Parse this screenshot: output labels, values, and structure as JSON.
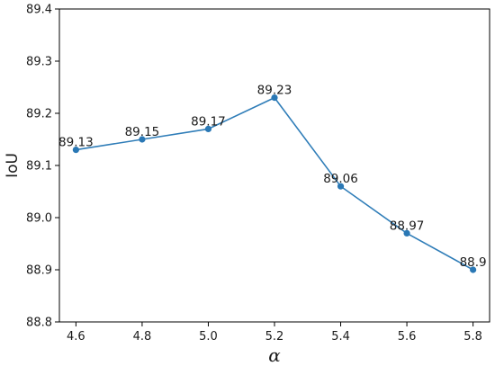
{
  "chart_data": {
    "type": "line",
    "title": "",
    "xlabel": "α",
    "ylabel": "IoU",
    "x": [
      4.6,
      4.8,
      5.0,
      5.2,
      5.4,
      5.6,
      5.8
    ],
    "series": [
      {
        "values": [
          89.13,
          89.15,
          89.17,
          89.23,
          89.06,
          88.97,
          88.9
        ],
        "color": "#2f7db8"
      }
    ],
    "data_labels": [
      "89.13",
      "89.15",
      "89.17",
      "89.23",
      "89.06",
      "88.97",
      "88.9"
    ],
    "xlim": [
      4.55,
      5.85
    ],
    "ylim": [
      88.8,
      89.4
    ],
    "x_ticks": [
      "4.6",
      "4.8",
      "5.0",
      "5.2",
      "5.4",
      "5.6",
      "5.8"
    ],
    "y_ticks": [
      "88.8",
      "88.9",
      "89.0",
      "89.1",
      "89.2",
      "89.3",
      "89.4"
    ],
    "grid": false,
    "legend": "none",
    "colors": {
      "line": "#2f7db8",
      "marker": "#2a78b5",
      "axes": "#000000",
      "text": "#1a1a1a"
    }
  }
}
